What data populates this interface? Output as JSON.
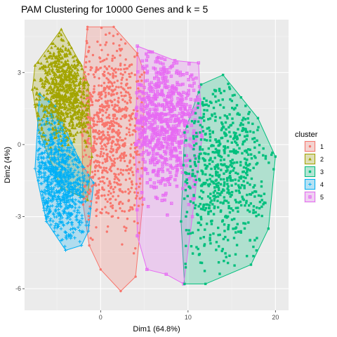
{
  "chart_data": {
    "type": "scatter",
    "title": "PAM Clustering for 10000 Genes and k = 5",
    "xlabel": "Dim1 (64.8%)",
    "ylabel": "Dim2 (4%)",
    "xlim": [
      -8.7,
      21.5
    ],
    "ylim": [
      -6.9,
      5.2
    ],
    "x_ticks": [
      0,
      10,
      20
    ],
    "y_ticks": [
      -6,
      -3,
      0,
      3
    ],
    "x_tick_labels": [
      "0",
      "10",
      "20"
    ],
    "y_tick_labels": [
      "-6",
      "-3",
      "0",
      "3"
    ],
    "grid": true,
    "panel_background": "#EBEBEB",
    "legend": {
      "title": "cluster",
      "position": "right"
    },
    "series": [
      {
        "name": "1",
        "color": "#F8766D",
        "marker": "circle",
        "hull": [
          [
            -1.5,
            4.9
          ],
          [
            1.5,
            4.9
          ],
          [
            4.2,
            3.8
          ],
          [
            5.0,
            3.0
          ],
          [
            4.8,
            -2.5
          ],
          [
            4.0,
            -5.5
          ],
          [
            2.3,
            -6.1
          ],
          [
            0.0,
            -5.2
          ],
          [
            -1.3,
            -4.2
          ],
          [
            -2.0,
            -2.5
          ],
          [
            -2.2,
            2.0
          ]
        ],
        "center": [
          1.2,
          0.5
        ],
        "spread": [
          2.1,
          1.9
        ],
        "points": 800
      },
      {
        "name": "2",
        "color": "#A3A500",
        "marker": "triangle",
        "hull": [
          [
            -4.5,
            4.8
          ],
          [
            -2.2,
            3.3
          ],
          [
            -1.4,
            2.5
          ],
          [
            -1.0,
            -0.5
          ],
          [
            -1.5,
            -2.3
          ],
          [
            -4.5,
            -1.8
          ],
          [
            -7.0,
            0.5
          ],
          [
            -7.8,
            2.3
          ],
          [
            -7.5,
            3.3
          ]
        ],
        "center": [
          -4.2,
          2.3
        ],
        "spread": [
          1.7,
          1.1
        ],
        "points": 800
      },
      {
        "name": "3",
        "color": "#00BF7D",
        "marker": "square",
        "hull": [
          [
            11.5,
            2.5
          ],
          [
            14.0,
            2.9
          ],
          [
            18.0,
            1.1
          ],
          [
            20.0,
            -0.5
          ],
          [
            19.2,
            -3.5
          ],
          [
            17.2,
            -5.0
          ],
          [
            12.0,
            -5.8
          ],
          [
            9.6,
            -5.8
          ],
          [
            9.2,
            -3.2
          ],
          [
            9.6,
            0.5
          ]
        ],
        "center": [
          14.2,
          -1.0
        ],
        "spread": [
          2.7,
          2.0
        ],
        "points": 650
      },
      {
        "name": "4",
        "color": "#00B0F6",
        "marker": "plus",
        "hull": [
          [
            -7.0,
            2.1
          ],
          [
            -5.2,
            1.6
          ],
          [
            -2.5,
            -0.6
          ],
          [
            -0.8,
            -1.6
          ],
          [
            -1.4,
            -3.6
          ],
          [
            -2.2,
            -4.2
          ],
          [
            -4.0,
            -4.4
          ],
          [
            -6.2,
            -3.2
          ],
          [
            -7.5,
            -1.0
          ]
        ],
        "center": [
          -4.6,
          -1.4
        ],
        "spread": [
          1.6,
          1.3
        ],
        "points": 800
      },
      {
        "name": "5",
        "color": "#E76BF3",
        "marker": "square-x",
        "hull": [
          [
            4.2,
            4.1
          ],
          [
            8.5,
            3.5
          ],
          [
            11.2,
            3.4
          ],
          [
            11.6,
            0.3
          ],
          [
            10.5,
            -3.0
          ],
          [
            9.5,
            -5.8
          ],
          [
            7.5,
            -5.4
          ],
          [
            5.3,
            -5.2
          ],
          [
            4.2,
            -3.8
          ],
          [
            4.0,
            0.0
          ]
        ],
        "center": [
          7.3,
          1.0
        ],
        "spread": [
          2.0,
          1.5
        ],
        "points": 700
      }
    ]
  }
}
